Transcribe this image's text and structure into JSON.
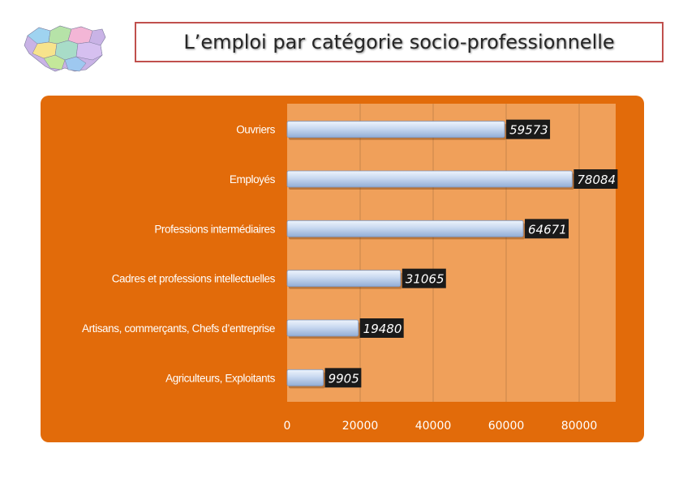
{
  "page": {
    "title": "L’emploi par catégorie socio-professionnelle"
  },
  "colors": {
    "panel": "#e26b0a",
    "plot_area": "#f0a05a",
    "bar": "#c8d8f0",
    "value_label_bg": "#1a1a1a",
    "value_label_text": "#ffffff"
  },
  "logo": {
    "icon": "region-map-icon"
  },
  "chart_data": {
    "type": "bar",
    "orientation": "horizontal",
    "title": "",
    "xlabel": "",
    "ylabel": "",
    "categories": [
      "Ouvriers",
      "Employés",
      "Professions intermédiaires",
      "Cadres et professions intellectuelles",
      "Artisans, commerçants, Chefs d’entreprise",
      "Agriculteurs, Exploitants"
    ],
    "values": [
      59573,
      78084,
      64671,
      31065,
      19480,
      9905
    ],
    "data_labels": [
      "59573",
      "78084",
      "64671",
      "31065",
      "19480",
      "9905"
    ],
    "xlim": [
      0,
      90000
    ],
    "x_ticks": [
      0,
      20000,
      40000,
      60000,
      80000
    ],
    "x_tick_labels": [
      "0",
      "20000",
      "40000",
      "60000",
      "80000"
    ],
    "grid": true,
    "legend": "none"
  }
}
